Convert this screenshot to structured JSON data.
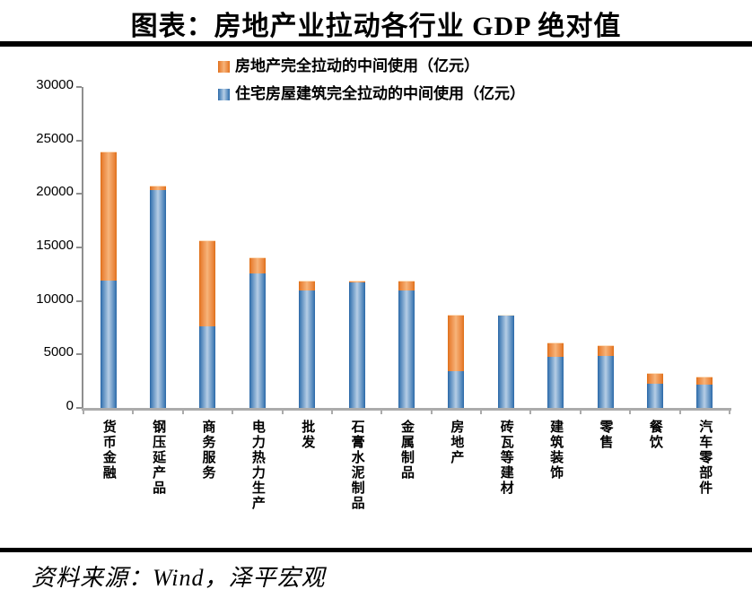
{
  "title": "图表：房地产业拉动各行业 GDP 绝对值",
  "source": "资料来源：Wind，泽平宏观",
  "colors": {
    "orange_edge": "#DD6E16",
    "orange_center": "#F7B77E",
    "blue_edge": "#2A66A5",
    "blue_center": "#B7CEE6",
    "y_axis": "#8F8F8F",
    "x_axis": "#ABABAB",
    "rule": "#000000"
  },
  "chart_data": {
    "type": "bar",
    "stacked": true,
    "title": "图表：房地产业拉动各行业 GDP 绝对值",
    "categories": [
      "货币金融",
      "钢压延产品",
      "商务服务",
      "电力热力生产",
      "批发",
      "石膏水泥制品",
      "金属制品",
      "房地产",
      "砖瓦等建材",
      "建筑装饰",
      "零售",
      "餐饮",
      "汽车零部件"
    ],
    "series": [
      {
        "name": "房地产完全拉动的中间使用（亿元）",
        "color_key": "orange",
        "stack_position": "top",
        "values": [
          12100,
          400,
          8100,
          1500,
          900,
          200,
          900,
          5300,
          100,
          1300,
          1000,
          1000,
          700
        ]
      },
      {
        "name": "住宅房屋建筑完全拉动的中间使用（亿元）",
        "color_key": "blue",
        "stack_position": "bottom",
        "values": [
          11900,
          20400,
          7600,
          12600,
          11000,
          11700,
          11000,
          3400,
          8600,
          4800,
          4900,
          2300,
          2200
        ]
      }
    ],
    "totals": [
      24000,
      20800,
      15700,
      14100,
      11900,
      11900,
      11900,
      8700,
      8700,
      6100,
      5900,
      3300,
      2900
    ],
    "xlabel": "",
    "ylabel": "",
    "ylim": [
      0,
      30000
    ],
    "y_ticks": [
      0,
      5000,
      10000,
      15000,
      20000,
      25000,
      30000
    ],
    "legend_position": "top",
    "grid": false
  }
}
